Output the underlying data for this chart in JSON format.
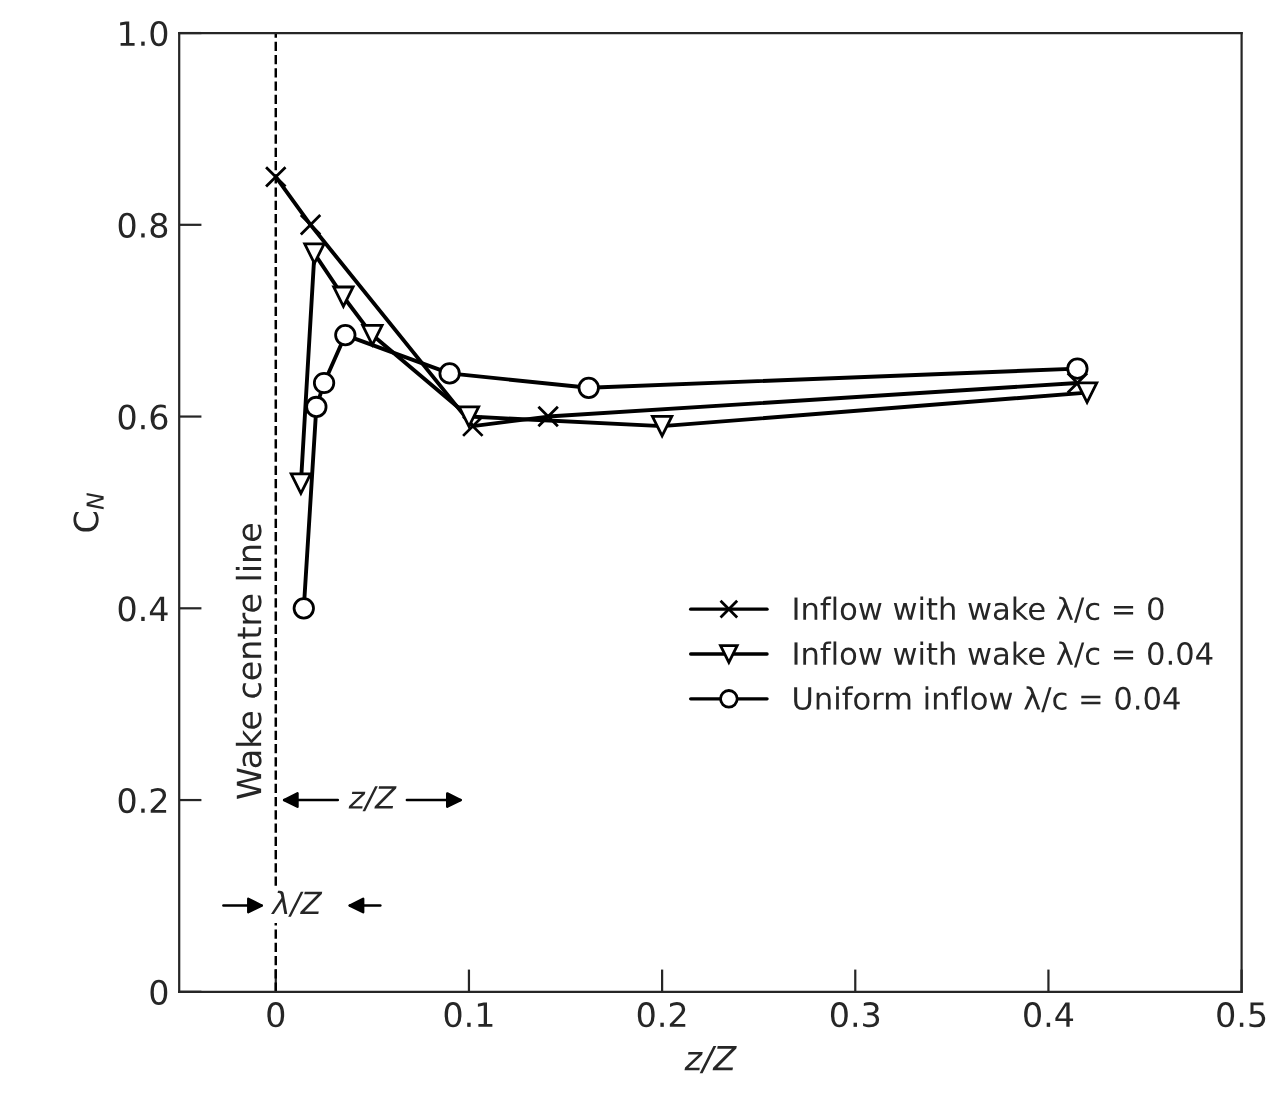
{
  "chart_data": {
    "type": "line",
    "xlabel": "z/Z",
    "ylabel": "C$_{N}$",
    "xlim": [
      -0.05,
      0.5
    ],
    "ylim": [
      0,
      1.0
    ],
    "xticks": [
      0,
      0.1,
      0.2,
      0.3,
      0.4,
      0.5
    ],
    "yticks": [
      0,
      0.2,
      0.4,
      0.6,
      0.8,
      {
        "value": 1.0,
        "label": "1.0"
      }
    ],
    "grid": false,
    "legend": "right",
    "series": [
      {
        "name": "Inflow with wake λ/c = 0",
        "color": "#000000",
        "marker": "cross",
        "x": [
          0,
          0.018,
          0.102,
          0.141,
          0.415
        ],
        "values": [
          0.85,
          0.8,
          0.59,
          0.6,
          0.635
        ]
      },
      {
        "name": "Inflow with wake λ/c = 0.04",
        "color": "#000000",
        "marker": "triangle",
        "x": [
          0.013,
          0.02,
          0.035,
          0.05,
          0.1,
          0.2,
          0.42
        ],
        "values": [
          0.53,
          0.77,
          0.725,
          0.685,
          0.6,
          0.59,
          0.625
        ]
      },
      {
        "name": "Uniform inflow λ/c = 0.04",
        "color": "#000000",
        "marker": "circle",
        "x": [
          0.0145,
          0.021,
          0.025,
          0.036,
          0.09,
          0.162,
          0.415
        ],
        "values": [
          0.4,
          0.61,
          0.635,
          0.685,
          0.645,
          0.63,
          0.65
        ]
      }
    ],
    "ref_lines": [
      {
        "axis": "x",
        "value": 0,
        "label": "Wake centre line",
        "line_style": "dashed",
        "color": "#000000"
      }
    ],
    "annotations": [
      {
        "text": "z/Z",
        "x": 0.05,
        "y": 0.2
      },
      {
        "text": "λ/Z",
        "x": 0.011,
        "y": 0.09
      }
    ]
  }
}
